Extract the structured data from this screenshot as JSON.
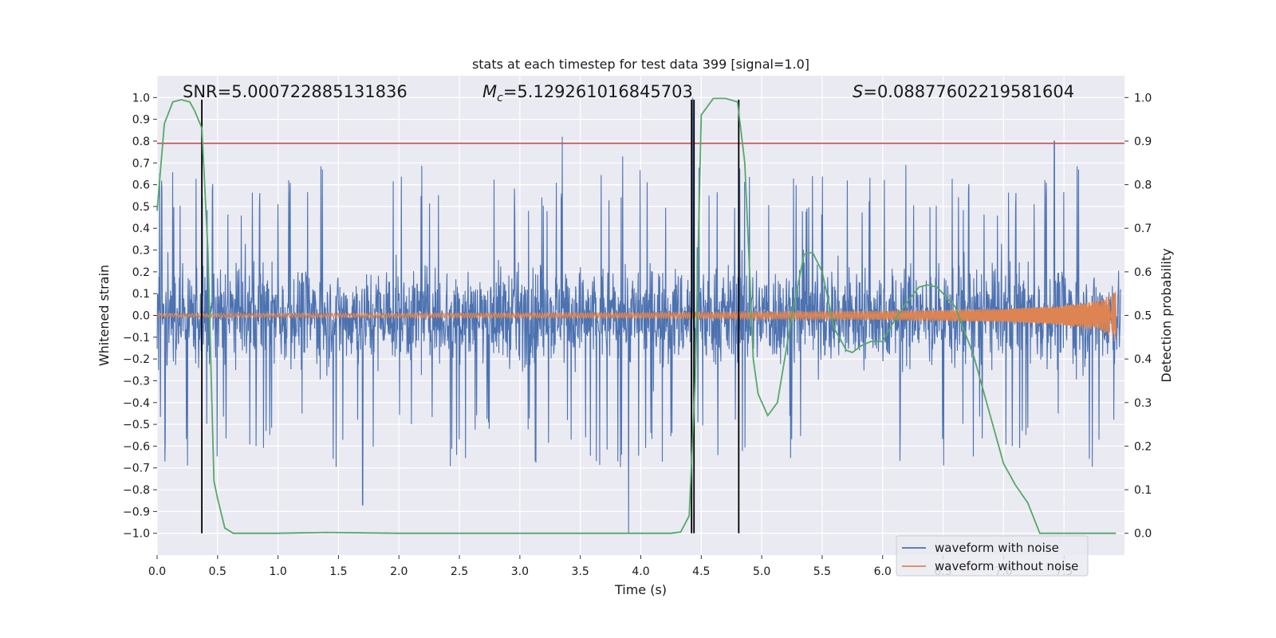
{
  "chart_data": {
    "type": "line",
    "title": "stats at each timestep for test data 399 [signal=1.0]",
    "xlabel": "Time (s)",
    "ylabel": "Whitened strain",
    "y2label": "Detection probability",
    "xlim": [
      0.0,
      8.0
    ],
    "ylim": [
      -1.1,
      1.1
    ],
    "y2lim": [
      -0.05,
      1.05
    ],
    "xticks": [
      "0.0",
      "0.5",
      "1.0",
      "1.5",
      "2.0",
      "2.5",
      "3.0",
      "3.5",
      "4.0",
      "4.5",
      "5.0",
      "5.5",
      "6.0",
      "6.5",
      "7.0",
      "7.5"
    ],
    "yticks": [
      "1.0",
      "0.9",
      "0.8",
      "0.7",
      "0.6",
      "0.5",
      "0.4",
      "0.3",
      "0.2",
      "0.1",
      "0.0",
      "−0.1",
      "−0.2",
      "−0.3",
      "−0.4",
      "−0.5",
      "−0.6",
      "−0.7",
      "−0.8",
      "−0.9",
      "−1.0"
    ],
    "y2ticks": [
      "1.0",
      "0.9",
      "0.8",
      "0.7",
      "0.6",
      "0.5",
      "0.4",
      "0.3",
      "0.2",
      "0.1",
      "0.0"
    ],
    "grid": true,
    "legend_position": "lower right",
    "annotations": {
      "snr": "SNR=5.000722885131836",
      "mc_symbol": "M",
      "mc_subscript": "c",
      "mc_value": "=5.129261016845703",
      "s_symbol": "S",
      "s_value": "=0.08877602219581604"
    },
    "series": [
      {
        "name": "waveform with noise",
        "color": "#4c72b0",
        "axis": "left",
        "description_peaks": {
          "upper_envelope_typical": 0.45,
          "lower_envelope_typical": -0.45,
          "notable_peaks": [
            {
              "x": 3.9,
              "y": -1.0
            },
            {
              "x": 4.43,
              "y": 1.0
            },
            {
              "x": 3.35,
              "y": 0.82
            },
            {
              "x": 7.42,
              "y": 0.8
            },
            {
              "x": 1.7,
              "y": -0.87
            },
            {
              "x": 3.85,
              "y": 0.73
            }
          ]
        }
      },
      {
        "name": "waveform without noise",
        "color": "#dd8452",
        "axis": "left",
        "envelope": [
          {
            "x": 0.0,
            "amp": 0.008
          },
          {
            "x": 4.0,
            "amp": 0.012
          },
          {
            "x": 6.0,
            "amp": 0.02
          },
          {
            "x": 7.0,
            "amp": 0.03
          },
          {
            "x": 7.5,
            "amp": 0.045
          },
          {
            "x": 7.8,
            "amp": 0.07
          },
          {
            "x": 7.93,
            "amp": 0.11
          }
        ]
      },
      {
        "name": "detection probability",
        "color": "#55a868",
        "axis": "right",
        "x": [
          0.0,
          0.06,
          0.13,
          0.2,
          0.27,
          0.31,
          0.37,
          0.42,
          0.47,
          0.5,
          0.56,
          0.63,
          1.0,
          1.4,
          2.0,
          3.0,
          4.0,
          4.25,
          4.33,
          4.4,
          4.45,
          4.5,
          4.6,
          4.7,
          4.8,
          4.86,
          4.9,
          4.93,
          4.97,
          5.05,
          5.13,
          5.25,
          5.35,
          5.42,
          5.5,
          5.6,
          5.7,
          5.75,
          5.82,
          5.9,
          6.0,
          6.1,
          6.2,
          6.3,
          6.37,
          6.45,
          6.6,
          6.75,
          6.9,
          7.0,
          7.1,
          7.2,
          7.3,
          7.93
        ],
        "y": [
          0.74,
          0.94,
          0.99,
          0.995,
          0.99,
          0.97,
          0.93,
          0.65,
          0.12,
          0.08,
          0.012,
          0.0,
          0.0,
          0.002,
          0.0,
          0.0,
          0.0,
          0.0,
          0.003,
          0.04,
          0.35,
          0.96,
          0.998,
          0.998,
          0.99,
          0.85,
          0.6,
          0.4,
          0.32,
          0.27,
          0.3,
          0.5,
          0.64,
          0.645,
          0.6,
          0.47,
          0.42,
          0.415,
          0.43,
          0.44,
          0.44,
          0.49,
          0.53,
          0.565,
          0.57,
          0.565,
          0.52,
          0.41,
          0.26,
          0.16,
          0.11,
          0.07,
          0.0,
          0.0
        ]
      },
      {
        "name": "threshold",
        "color": "#c44e52",
        "axis": "left",
        "y": 0.79
      }
    ],
    "vertical_lines": [
      0.37,
      4.42,
      4.44,
      4.81
    ],
    "legend": [
      "waveform with noise",
      "waveform without noise"
    ]
  }
}
